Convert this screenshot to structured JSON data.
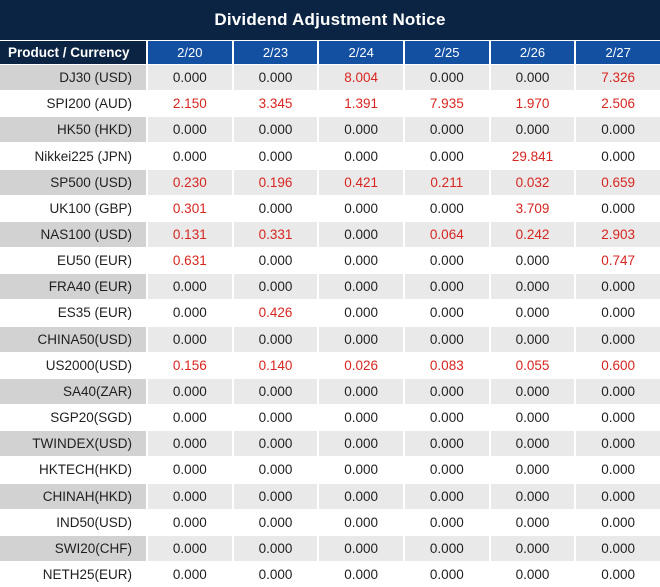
{
  "chart_data": {
    "type": "table",
    "title": "Dividend Adjustment Notice",
    "columns": [
      "Product / Currency",
      "2/20",
      "2/23",
      "2/24",
      "2/25",
      "2/26",
      "2/27"
    ],
    "rows": [
      {
        "product": "DJ30 (USD)",
        "values": [
          "0.000",
          "0.000",
          "8.004",
          "0.000",
          "0.000",
          "7.326"
        ]
      },
      {
        "product": "SPI200 (AUD)",
        "values": [
          "2.150",
          "3.345",
          "1.391",
          "7.935",
          "1.970",
          "2.506"
        ]
      },
      {
        "product": "HK50 (HKD)",
        "values": [
          "0.000",
          "0.000",
          "0.000",
          "0.000",
          "0.000",
          "0.000"
        ]
      },
      {
        "product": "Nikkei225 (JPN)",
        "values": [
          "0.000",
          "0.000",
          "0.000",
          "0.000",
          "29.841",
          "0.000"
        ]
      },
      {
        "product": "SP500 (USD)",
        "values": [
          "0.230",
          "0.196",
          "0.421",
          "0.211",
          "0.032",
          "0.659"
        ]
      },
      {
        "product": "UK100 (GBP)",
        "values": [
          "0.301",
          "0.000",
          "0.000",
          "0.000",
          "3.709",
          "0.000"
        ]
      },
      {
        "product": "NAS100 (USD)",
        "values": [
          "0.131",
          "0.331",
          "0.000",
          "0.064",
          "0.242",
          "2.903"
        ]
      },
      {
        "product": "EU50 (EUR)",
        "values": [
          "0.631",
          "0.000",
          "0.000",
          "0.000",
          "0.000",
          "0.747"
        ]
      },
      {
        "product": "FRA40 (EUR)",
        "values": [
          "0.000",
          "0.000",
          "0.000",
          "0.000",
          "0.000",
          "0.000"
        ]
      },
      {
        "product": "ES35 (EUR)",
        "values": [
          "0.000",
          "0.426",
          "0.000",
          "0.000",
          "0.000",
          "0.000"
        ]
      },
      {
        "product": "CHINA50(USD)",
        "values": [
          "0.000",
          "0.000",
          "0.000",
          "0.000",
          "0.000",
          "0.000"
        ]
      },
      {
        "product": "US2000(USD)",
        "values": [
          "0.156",
          "0.140",
          "0.026",
          "0.083",
          "0.055",
          "0.600"
        ]
      },
      {
        "product": "SA40(ZAR)",
        "values": [
          "0.000",
          "0.000",
          "0.000",
          "0.000",
          "0.000",
          "0.000"
        ]
      },
      {
        "product": "SGP20(SGD)",
        "values": [
          "0.000",
          "0.000",
          "0.000",
          "0.000",
          "0.000",
          "0.000"
        ]
      },
      {
        "product": "TWINDEX(USD)",
        "values": [
          "0.000",
          "0.000",
          "0.000",
          "0.000",
          "0.000",
          "0.000"
        ]
      },
      {
        "product": "HKTECH(HKD)",
        "values": [
          "0.000",
          "0.000",
          "0.000",
          "0.000",
          "0.000",
          "0.000"
        ]
      },
      {
        "product": "CHINAH(HKD)",
        "values": [
          "0.000",
          "0.000",
          "0.000",
          "0.000",
          "0.000",
          "0.000"
        ]
      },
      {
        "product": "IND50(USD)",
        "values": [
          "0.000",
          "0.000",
          "0.000",
          "0.000",
          "0.000",
          "0.000"
        ]
      },
      {
        "product": "SWI20(CHF)",
        "values": [
          "0.000",
          "0.000",
          "0.000",
          "0.000",
          "0.000",
          "0.000"
        ]
      },
      {
        "product": "NETH25(EUR)",
        "values": [
          "0.000",
          "0.000",
          "0.000",
          "0.000",
          "0.000",
          "0.000"
        ]
      }
    ],
    "value_style_rule": "non-zero values shown in red, zero values in black",
    "layout": {
      "alternating_rows": true,
      "label_align": "right",
      "value_align": "center"
    }
  },
  "colors": {
    "title_bg": "#0b2443",
    "corner_bg": "#0b2443",
    "header_bg": "#1350a2",
    "row_label_bg": "#d2d2d2",
    "row_value_bg": "#e9e9e9",
    "red_color": "#d8251f",
    "text_color": "#1f1f1f"
  }
}
